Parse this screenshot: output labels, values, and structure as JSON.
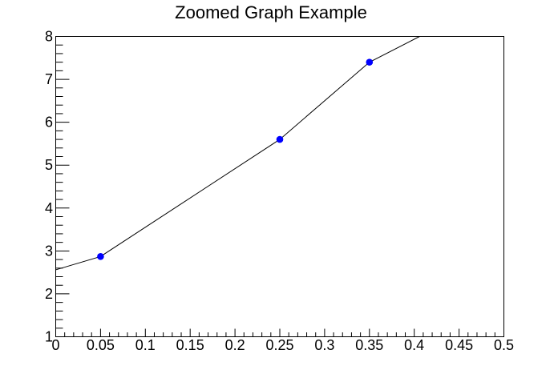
{
  "title": "Zoomed Graph Example",
  "colors": {
    "background": "#ffffff",
    "frame": "#000000",
    "line": "#000000",
    "marker": "#0000ff",
    "text": "#000000"
  },
  "chart_data": {
    "type": "line",
    "title": "Zoomed Graph Example",
    "xlabel": "",
    "ylabel": "",
    "xlim": [
      0,
      0.5
    ],
    "ylim": [
      1,
      8
    ],
    "x_major_step": 0.05,
    "x_minor_step": 0.01,
    "y_major_step": 1,
    "y_minor_step": 0.2,
    "x_tick_labels": [
      "0",
      "0.05",
      "0.1",
      "0.15",
      "0.2",
      "0.25",
      "0.3",
      "0.35",
      "0.4",
      "0.45",
      "0.5"
    ],
    "y_tick_labels": [
      "1",
      "2",
      "3",
      "4",
      "5",
      "6",
      "7",
      "8"
    ],
    "grid": false,
    "legend": null,
    "marker_points": [
      {
        "x": 0.05,
        "y": 2.87
      },
      {
        "x": 0.25,
        "y": 5.6
      },
      {
        "x": 0.35,
        "y": 7.4
      }
    ],
    "line_points": [
      [
        0,
        2.56
      ],
      [
        0.05,
        2.87
      ],
      [
        0.25,
        5.6
      ],
      [
        0.35,
        7.4
      ],
      [
        0.406,
        8.0
      ]
    ]
  }
}
